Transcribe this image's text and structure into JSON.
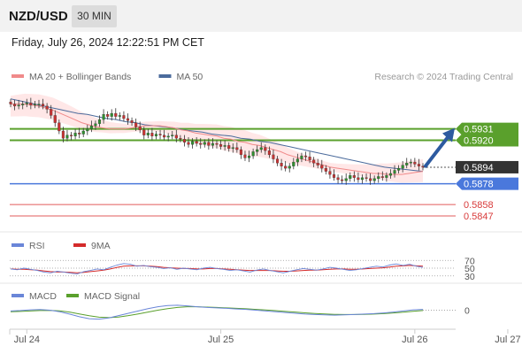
{
  "header": {
    "pair": "NZD/USD",
    "timeframe": "30 MIN"
  },
  "date_text": "Friday, July 26, 2024 12:22:51 PM CET",
  "colors": {
    "green": "#5aa02c",
    "blue": "#4a78dc",
    "red": "#e25b5b",
    "dark": "#333333",
    "bollinger": "#ffd3d3",
    "ma20": "#f08a8a",
    "ma50": "#4b6b9c",
    "rsi": "#6a86d8",
    "rsi_ma": "#d42b2b",
    "macd": "#6a86d8",
    "macd_signal": "#5aa02c"
  },
  "chart_data": [
    {
      "type": "line",
      "panel": "price",
      "legend": [
        {
          "name": "MA 20 + Bollinger Bands",
          "color": "#f08a8a"
        },
        {
          "name": "MA 50",
          "color": "#4b6b9c"
        }
      ],
      "credit": "Research © 2024 Trading Central",
      "ylim": [
        0.5835,
        0.597
      ],
      "levels": [
        {
          "value": 0.5931,
          "label": "0.5931",
          "kind": "resistance",
          "color": "#5aa02c"
        },
        {
          "value": 0.592,
          "label": "0.5920",
          "kind": "resistance",
          "color": "#5aa02c"
        },
        {
          "value": 0.5894,
          "label": "0.5894",
          "kind": "last",
          "color": "#333333"
        },
        {
          "value": 0.5878,
          "label": "0.5878",
          "kind": "pivot",
          "color": "#4a78dc"
        },
        {
          "value": 0.5858,
          "label": "0.5858",
          "kind": "support",
          "color": "#e25b5b"
        },
        {
          "value": 0.5847,
          "label": "0.5847",
          "kind": "support",
          "color": "#e25b5b"
        }
      ],
      "xlabels": [
        "Jul 24",
        "Jul 25",
        "Jul 26",
        "Jul 27"
      ],
      "x_label_index": [
        4,
        52,
        100,
        123
      ],
      "close": [
        0.5955,
        0.5953,
        0.5954,
        0.5955,
        0.5956,
        0.5954,
        0.5955,
        0.5955,
        0.5953,
        0.595,
        0.5944,
        0.5937,
        0.5929,
        0.5922,
        0.5925,
        0.5924,
        0.5927,
        0.5926,
        0.5929,
        0.5931,
        0.5934,
        0.5936,
        0.594,
        0.5945,
        0.5943,
        0.5946,
        0.5943,
        0.5944,
        0.5941,
        0.5939,
        0.5937,
        0.5933,
        0.593,
        0.5925,
        0.5927,
        0.5924,
        0.5926,
        0.5925,
        0.5923,
        0.5924,
        0.5925,
        0.5922,
        0.5921,
        0.5918,
        0.5916,
        0.5919,
        0.5917,
        0.5916,
        0.5918,
        0.5915,
        0.5917,
        0.5916,
        0.5914,
        0.5915,
        0.5912,
        0.5913,
        0.5911,
        0.5906,
        0.5903,
        0.5905,
        0.5909,
        0.5911,
        0.5913,
        0.591,
        0.5906,
        0.5902,
        0.5898,
        0.5895,
        0.5893,
        0.5895,
        0.5899,
        0.5902,
        0.5905,
        0.5904,
        0.5901,
        0.5898,
        0.5896,
        0.5893,
        0.589,
        0.5887,
        0.5884,
        0.5882,
        0.5881,
        0.5883,
        0.5886,
        0.5884,
        0.5882,
        0.5884,
        0.5883,
        0.5881,
        0.5883,
        0.5885,
        0.5884,
        0.5886,
        0.5888,
        0.5891,
        0.5893,
        0.5896,
        0.5898,
        0.5899,
        0.5897,
        0.5895,
        0.5894
      ],
      "ma20": [
        0.5955,
        0.5955,
        0.5955,
        0.5954,
        0.5953,
        0.5951,
        0.5949,
        0.5946,
        0.5943,
        0.594,
        0.5937,
        0.5935,
        0.5933,
        0.5932,
        0.5931,
        0.5931,
        0.5931,
        0.5932,
        0.5933,
        0.5934,
        0.5934,
        0.5934,
        0.5933,
        0.5932,
        0.593,
        0.5929,
        0.5927,
        0.5926,
        0.5925,
        0.5924,
        0.5922,
        0.5921,
        0.5919,
        0.5918,
        0.5916,
        0.5915,
        0.5913,
        0.5911,
        0.5909,
        0.5906,
        0.5904,
        0.5902,
        0.59,
        0.5898,
        0.5896,
        0.5894,
        0.5893,
        0.5892,
        0.5891,
        0.589,
        0.5889,
        0.5888,
        0.5888,
        0.5887,
        0.5887,
        0.5887,
        0.5888,
        0.5889,
        0.589
      ],
      "ma50": [
        0.596,
        0.5958,
        0.5956,
        0.5954,
        0.5952,
        0.595,
        0.5948,
        0.5946,
        0.5945,
        0.5943,
        0.5941,
        0.594,
        0.5938,
        0.5937,
        0.5935,
        0.5934,
        0.5933,
        0.5932,
        0.593,
        0.5929,
        0.5928,
        0.5926,
        0.5925,
        0.5924,
        0.5922,
        0.5921,
        0.5919,
        0.5918,
        0.5916,
        0.5914,
        0.5912,
        0.591,
        0.5908,
        0.5906,
        0.5904,
        0.5902,
        0.59,
        0.5898,
        0.5896,
        0.5894,
        0.5893,
        0.5892,
        0.5891,
        0.589
      ]
    },
    {
      "type": "line",
      "panel": "rsi",
      "legend": [
        {
          "name": "RSI",
          "color": "#6a86d8"
        },
        {
          "name": "9MA",
          "color": "#d42b2b"
        }
      ],
      "levels": [
        {
          "value": 70,
          "label": "70"
        },
        {
          "value": 50,
          "label": "50"
        },
        {
          "value": 30,
          "label": "30"
        }
      ],
      "ylim": [
        18,
        82
      ],
      "rsi": [
        48,
        46,
        50,
        47,
        44,
        40,
        38,
        42,
        40,
        37,
        35,
        41,
        44,
        48,
        46,
        52,
        58,
        62,
        60,
        55,
        57,
        54,
        52,
        49,
        51,
        47,
        50,
        48,
        46,
        50,
        52,
        49,
        47,
        44,
        46,
        43,
        40,
        45,
        48,
        44,
        41,
        38,
        42,
        46,
        49,
        47,
        45,
        48,
        52,
        50,
        47,
        44,
        46,
        49,
        52,
        55,
        53,
        58,
        61,
        57,
        60,
        55,
        52
      ],
      "ma": [
        48,
        47,
        47,
        46,
        45,
        43,
        41,
        40,
        40,
        39,
        38,
        39,
        41,
        43,
        45,
        48,
        52,
        55,
        56,
        56,
        56,
        55,
        54,
        52,
        51,
        50,
        49,
        49,
        48,
        48,
        49,
        49,
        48,
        47,
        46,
        45,
        44,
        44,
        44,
        44,
        43,
        42,
        42,
        43,
        44,
        45,
        45,
        46,
        47,
        48,
        48,
        47,
        47,
        48,
        49,
        50,
        51,
        53,
        55,
        56,
        57,
        56,
        55
      ]
    },
    {
      "type": "line",
      "panel": "macd",
      "legend": [
        {
          "name": "MACD",
          "color": "#6a86d8"
        },
        {
          "name": "MACD Signal",
          "color": "#5aa02c"
        }
      ],
      "levels": [
        {
          "value": 0,
          "label": "0"
        }
      ],
      "ylim": [
        -1.0,
        0.6
      ],
      "macd": [
        -0.05,
        -0.02,
        0.02,
        0.04,
        0.0,
        -0.1,
        -0.25,
        -0.42,
        -0.55,
        -0.58,
        -0.5,
        -0.35,
        -0.2,
        -0.05,
        0.1,
        0.22,
        0.3,
        0.32,
        0.28,
        0.22,
        0.18,
        0.15,
        0.12,
        0.08,
        0.05,
        0.0,
        -0.05,
        -0.1,
        -0.15,
        -0.2,
        -0.25,
        -0.28,
        -0.3,
        -0.32,
        -0.3,
        -0.28,
        -0.25,
        -0.22,
        -0.18,
        -0.12,
        -0.05,
        0.02,
        0.05
      ],
      "signal": [
        -0.1,
        -0.08,
        -0.05,
        -0.02,
        -0.01,
        -0.04,
        -0.12,
        -0.24,
        -0.36,
        -0.45,
        -0.48,
        -0.44,
        -0.35,
        -0.24,
        -0.12,
        0.0,
        0.1,
        0.18,
        0.22,
        0.22,
        0.2,
        0.18,
        0.15,
        0.12,
        0.09,
        0.05,
        0.01,
        -0.03,
        -0.08,
        -0.12,
        -0.17,
        -0.21,
        -0.24,
        -0.27,
        -0.28,
        -0.28,
        -0.27,
        -0.25,
        -0.22,
        -0.18,
        -0.13,
        -0.07,
        -0.02
      ]
    }
  ]
}
